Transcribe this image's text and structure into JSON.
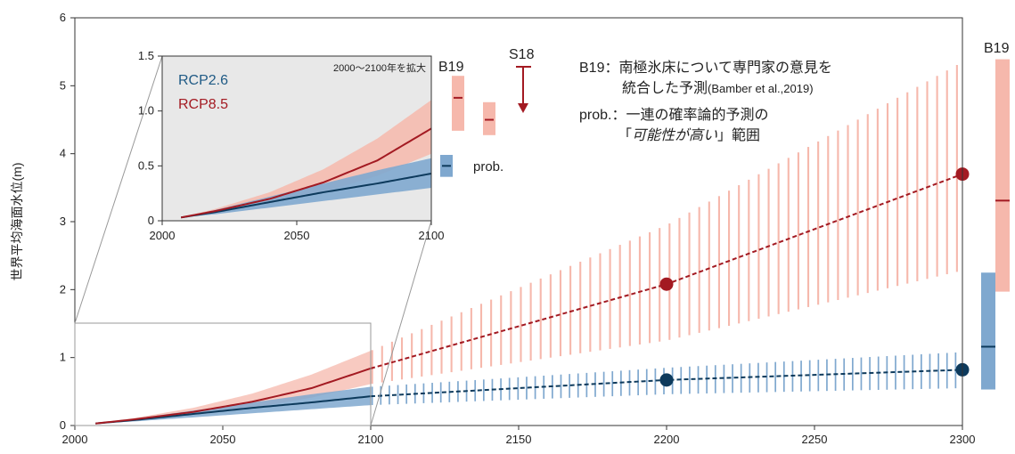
{
  "chart_data": {
    "type": "line",
    "ylabel": "世界平均海面水位(m)",
    "xlim": [
      2000,
      2300
    ],
    "ylim": [
      0,
      6
    ],
    "x_ticks": [
      2000,
      2050,
      2100,
      2150,
      2200,
      2250,
      2300
    ],
    "y_ticks": [
      0,
      1,
      2,
      3,
      4,
      5,
      6
    ],
    "series": [
      {
        "name": "RCP2.6",
        "color": "#0d3a5c",
        "band_color": "#7fa8cf",
        "x": [
          2007,
          2020,
          2040,
          2060,
          2080,
          2100,
          2200,
          2300
        ],
        "median": [
          0.03,
          0.08,
          0.17,
          0.26,
          0.34,
          0.43,
          0.67,
          0.82
        ],
        "low": [
          0.03,
          0.06,
          0.12,
          0.18,
          0.24,
          0.3,
          0.46,
          0.55
        ],
        "high": [
          0.03,
          0.1,
          0.22,
          0.34,
          0.46,
          0.57,
          0.85,
          1.08
        ],
        "markers": [
          {
            "x": 2200,
            "y": 0.67
          },
          {
            "x": 2300,
            "y": 0.82
          }
        ]
      },
      {
        "name": "RCP8.5",
        "color": "#a31a22",
        "band_color": "#f6b8ac",
        "x": [
          2007,
          2020,
          2040,
          2060,
          2080,
          2100,
          2200,
          2300
        ],
        "median": [
          0.03,
          0.09,
          0.2,
          0.35,
          0.55,
          0.84,
          2.08,
          3.7
        ],
        "low": [
          0.03,
          0.07,
          0.16,
          0.26,
          0.41,
          0.61,
          1.25,
          2.28
        ],
        "high": [
          0.03,
          0.11,
          0.26,
          0.47,
          0.75,
          1.1,
          2.95,
          5.35
        ],
        "markers": [
          {
            "x": 2200,
            "y": 2.08
          },
          {
            "x": 2300,
            "y": 3.7
          }
        ]
      }
    ],
    "side_bars_2300": [
      {
        "series": "RCP2.6",
        "low": 0.53,
        "median": 1.16,
        "high": 2.25
      },
      {
        "series": "RCP8.5",
        "low": 1.97,
        "median": 3.31,
        "high": 5.39,
        "label": "B19"
      }
    ],
    "inset": {
      "title": "2000〜2100年を拡大",
      "xlim": [
        2000,
        2100
      ],
      "ylim": [
        0,
        1.5
      ],
      "x_ticks": [
        2000,
        2050,
        2100
      ],
      "y_ticks": [
        "0",
        "0.5",
        "1.0",
        "1.5"
      ],
      "legend": [
        "RCP2.6",
        "RCP8.5"
      ],
      "b19_label": "B19",
      "prob_label": "prob.",
      "s18_label": "S18",
      "b19_bars": [
        {
          "series": "RCP8.5",
          "low": 0.82,
          "median": 1.12,
          "high": 1.32
        },
        {
          "series": "RCP2.6",
          "low": 0.4,
          "median": 0.5,
          "high": 0.6
        }
      ],
      "prob_bars": [
        {
          "series": "RCP8.5",
          "low": 0.78,
          "median": 0.92,
          "high": 1.08
        }
      ]
    },
    "notes": {
      "b19_line1": "B19：南極氷床について専門家の意見を",
      "b19_line2": "統合した予測",
      "b19_cite": "(Bamber et al.,2019)",
      "prob_line1": "prob.：一連の確率論的予測の",
      "prob_line2_open": "「",
      "prob_line2_italic": "可能性が高い",
      "prob_line2_close": "」範囲"
    }
  }
}
